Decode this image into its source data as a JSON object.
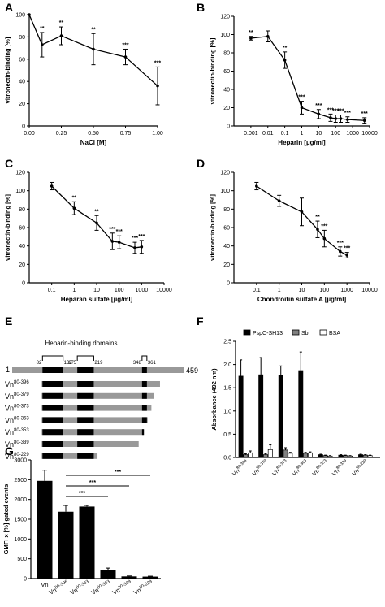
{
  "figure": {
    "panel_letters": [
      "A",
      "B",
      "C",
      "D",
      "E",
      "F",
      "G"
    ]
  },
  "chart_data": [
    {
      "panel": "A",
      "type": "line",
      "xscale": "linear",
      "xlabel": "NaCl [M]",
      "ylabel": "vitronectin-binding [%]",
      "xlim": [
        0,
        1
      ],
      "ylim": [
        0,
        100
      ],
      "xticks": [
        0,
        0.25,
        0.5,
        0.75,
        1
      ],
      "xtick_labels": [
        "0.00",
        "0.25",
        "0.50",
        "0.75",
        "1.00"
      ],
      "yticks": [
        0,
        20,
        40,
        60,
        80,
        100
      ],
      "ytick_labels": [
        "0",
        "20",
        "40",
        "60",
        "80",
        "100"
      ],
      "series": [
        {
          "x": [
            0,
            0.1,
            0.25,
            0.5,
            0.75,
            1.0
          ],
          "y": [
            100,
            73,
            81,
            69,
            62,
            36
          ],
          "err": [
            0,
            11,
            8,
            14,
            7,
            17
          ],
          "sig": [
            "",
            "**",
            "**",
            "**",
            "***",
            "***"
          ]
        }
      ]
    },
    {
      "panel": "B",
      "type": "line",
      "xscale": "log",
      "xlabel": "Heparin [µg/ml]",
      "ylabel": "vitronectin-binding [%]",
      "xlim": [
        0.0001,
        10000
      ],
      "ylim": [
        0,
        120
      ],
      "xticks": [
        0.001,
        0.01,
        0.1,
        1,
        10,
        100,
        1000,
        10000
      ],
      "xtick_labels": [
        "0.001",
        "0.01",
        "0.1",
        "1",
        "10",
        "100",
        "1000",
        "10000"
      ],
      "yticks": [
        0,
        20,
        40,
        60,
        80,
        100,
        120
      ],
      "ytick_labels": [
        "0",
        "20",
        "40",
        "60",
        "80",
        "100",
        "120"
      ],
      "series": [
        {
          "x": [
            0.001,
            0.01,
            0.1,
            1,
            10,
            50,
            100,
            200,
            500,
            5000
          ],
          "y": [
            96,
            98,
            72,
            20,
            13,
            9,
            8,
            8,
            7,
            6
          ],
          "err": [
            2,
            6,
            9,
            7,
            5,
            4,
            4,
            4,
            3,
            3
          ],
          "sig": [
            "**",
            "",
            "**",
            "***",
            "***",
            "***",
            "***",
            "***",
            "***",
            "***"
          ]
        }
      ]
    },
    {
      "panel": "C",
      "type": "line",
      "xscale": "log",
      "xlabel": "Heparan sulfate [µg/ml]",
      "ylabel": "vitronectin-binding [%]",
      "xlim": [
        0.01,
        10000
      ],
      "ylim": [
        0,
        120
      ],
      "xticks": [
        0.1,
        1,
        10,
        100,
        1000,
        10000
      ],
      "xtick_labels": [
        "0.1",
        "1",
        "10",
        "100",
        "1000",
        "10000"
      ],
      "yticks": [
        0,
        20,
        40,
        60,
        80,
        100,
        120
      ],
      "ytick_labels": [
        "0",
        "20",
        "40",
        "60",
        "80",
        "100",
        "120"
      ],
      "series": [
        {
          "x": [
            0.1,
            1,
            10,
            50,
            100,
            500,
            1000
          ],
          "y": [
            105,
            81,
            65,
            45,
            44,
            38,
            39
          ],
          "err": [
            4,
            7,
            8,
            9,
            7,
            6,
            7
          ],
          "sig": [
            "",
            "**",
            "**",
            "***",
            "***",
            "***",
            "***"
          ]
        }
      ]
    },
    {
      "panel": "D",
      "type": "line",
      "xscale": "log",
      "xlabel": "Chondroitin sulfate A [µg/ml]",
      "ylabel": "vitronectin-binding [%]",
      "xlim": [
        0.01,
        10000
      ],
      "ylim": [
        0,
        120
      ],
      "xticks": [
        0.1,
        1,
        10,
        100,
        1000,
        10000
      ],
      "xtick_labels": [
        "0.1",
        "1",
        "10",
        "100",
        "1000",
        "10000"
      ],
      "yticks": [
        0,
        20,
        40,
        60,
        80,
        100,
        120
      ],
      "ytick_labels": [
        "0",
        "20",
        "40",
        "60",
        "80",
        "100",
        "120"
      ],
      "series": [
        {
          "x": [
            0.1,
            1,
            10,
            50,
            100,
            500,
            1000
          ],
          "y": [
            105,
            89,
            77,
            58,
            48,
            34,
            30
          ],
          "err": [
            4,
            6,
            15,
            9,
            9,
            5,
            3
          ],
          "sig": [
            "",
            "",
            "",
            "**",
            "***",
            "***",
            "***"
          ]
        }
      ]
    },
    {
      "panel": "F",
      "type": "bar",
      "ylabel": "Absorbance (492 nm)",
      "ylim": [
        0,
        2.5
      ],
      "yticks": [
        0,
        0.5,
        1.0,
        1.5,
        2.0,
        2.5
      ],
      "ytick_labels": [
        "0.0",
        "0.5",
        "1.0",
        "1.5",
        "2.0",
        "2.5"
      ],
      "categories": [
        "Vn80-396",
        "Vn80-379",
        "Vn80-373",
        "Vn80-363",
        "Vn80-353",
        "Vn80-339",
        "Vn80-229"
      ],
      "series": [
        {
          "name": "PspC-SH13",
          "color": "#000000",
          "values": [
            1.75,
            1.78,
            1.77,
            1.87,
            0.06,
            0.05,
            0.06
          ],
          "err": [
            0.35,
            0.37,
            0.2,
            0.4,
            0.01,
            0.01,
            0.01
          ]
        },
        {
          "name": "Sbi",
          "color": "#808080",
          "values": [
            0.06,
            0.06,
            0.16,
            0.09,
            0.04,
            0.04,
            0.05
          ],
          "err": [
            0.02,
            0.02,
            0.05,
            0.02,
            0.01,
            0.01,
            0.01
          ]
        },
        {
          "name": "BSA",
          "color": "#ffffff",
          "values": [
            0.1,
            0.17,
            0.09,
            0.1,
            0.03,
            0.03,
            0.04
          ],
          "err": [
            0.04,
            0.1,
            0.02,
            0.02,
            0.01,
            0.01,
            0.01
          ]
        }
      ]
    },
    {
      "panel": "G",
      "type": "bar",
      "ylabel": "GMFI x [%] gated events",
      "ylim": [
        0,
        3000
      ],
      "yticks": [
        0,
        500,
        1000,
        1500,
        2000,
        2500,
        3000
      ],
      "ytick_labels": [
        "0",
        "500",
        "1000",
        "1500",
        "2000",
        "2500",
        "3000"
      ],
      "categories": [
        "Vn",
        "Vn80-396",
        "Vn80-363",
        "Vn80-353",
        "Vn80-339",
        "Vn80-229"
      ],
      "series": [
        {
          "values": [
            2470,
            1690,
            1820,
            225,
            55,
            50
          ],
          "err": [
            270,
            160,
            30,
            40,
            10,
            10
          ]
        }
      ],
      "significance": [
        {
          "from": "Vn80-396",
          "to": "Vn80-353",
          "label": "***"
        },
        {
          "from": "Vn80-396",
          "to": "Vn80-339",
          "label": "***"
        },
        {
          "from": "Vn80-396",
          "to": "Vn80-229",
          "label": "***"
        }
      ]
    }
  ],
  "domain_map": {
    "title": "Heparin-binding domains",
    "length": 459,
    "start_label": "1",
    "end_label": "459",
    "domains": [
      {
        "start": 82,
        "end": 137,
        "start_label": "82",
        "end_label": "137"
      },
      {
        "start": 175,
        "end": 219,
        "start_label": "175",
        "end_label": "219"
      },
      {
        "start": 348,
        "end": 361,
        "start_label": "348",
        "end_label": "361"
      }
    ],
    "constructs": [
      {
        "prefix": "Vn",
        "sup": "80-396",
        "end": 396
      },
      {
        "prefix": "Vn",
        "sup": "80-379",
        "end": 379
      },
      {
        "prefix": "Vn",
        "sup": "80-373",
        "end": 373
      },
      {
        "prefix": "Vn",
        "sup": "80-363",
        "end": 363
      },
      {
        "prefix": "Vn",
        "sup": "80-353",
        "end": 353
      },
      {
        "prefix": "Vn",
        "sup": "80-339",
        "end": 339
      },
      {
        "prefix": "Vn",
        "sup": "80-229",
        "end": 229
      }
    ]
  }
}
